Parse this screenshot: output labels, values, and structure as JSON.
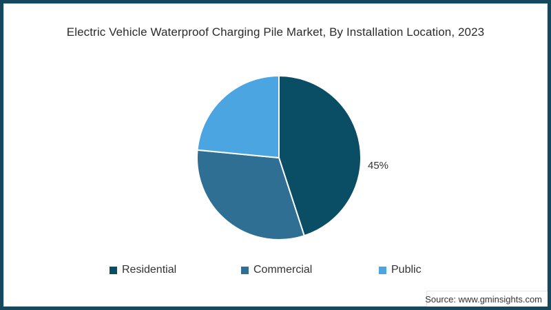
{
  "title": "Electric Vehicle Waterproof Charging Pile Market, By Installation Location, 2023",
  "source": "Source: www.gminsights.com",
  "colors": {
    "page_border": "#15475d",
    "residential": "#0a4e66",
    "commercial": "#2f6f94",
    "public": "#4aa5e0",
    "slice_divider": "#ffffff",
    "text": "#2b2b2b"
  },
  "chart_data": {
    "type": "pie",
    "title": "Electric Vehicle Waterproof Charging Pile Market, By Installation Location, 2023",
    "categories": [
      "Residential",
      "Commercial",
      "Public"
    ],
    "values": [
      45,
      31.5,
      23.5
    ],
    "colors": [
      "#0a4e66",
      "#2f6f94",
      "#4aa5e0"
    ],
    "data_labels": [
      "45%",
      "",
      ""
    ],
    "annotation": "45%",
    "start_angle_deg": -90,
    "direction": "clockwise",
    "legend_position": "bottom"
  },
  "legend": {
    "items": [
      {
        "label": "Residential",
        "color": "#0a4e66"
      },
      {
        "label": "Commercial",
        "color": "#2f6f94"
      },
      {
        "label": "Public",
        "color": "#4aa5e0"
      }
    ]
  }
}
